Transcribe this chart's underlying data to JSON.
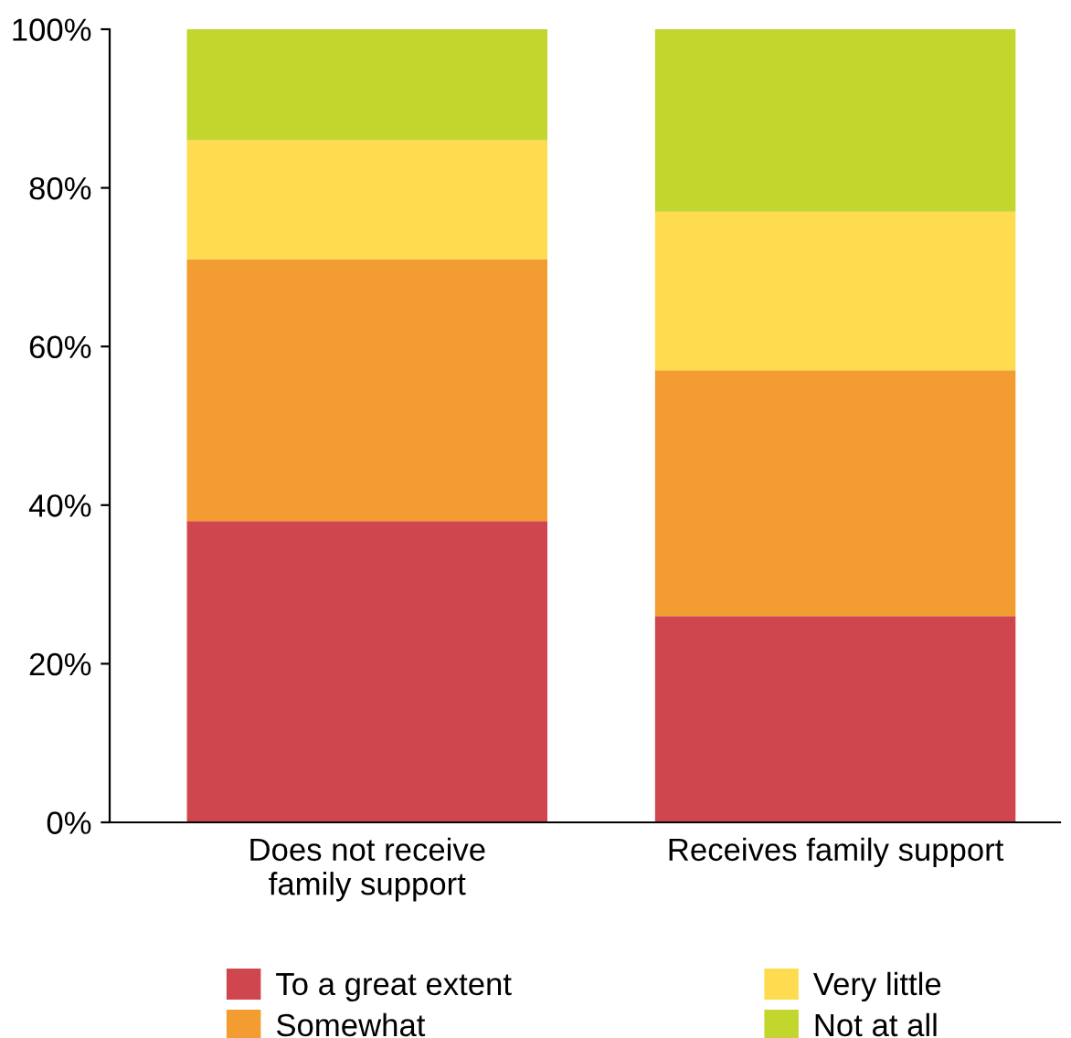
{
  "chart_data": {
    "type": "bar",
    "stacked": true,
    "categories": [
      "Does not receive\nfamily support",
      "Receives family support"
    ],
    "series": [
      {
        "name": "To a great extent",
        "color": "#d0464f",
        "values": [
          38,
          26
        ]
      },
      {
        "name": "Somewhat",
        "color": "#f39c31",
        "values": [
          33,
          31
        ]
      },
      {
        "name": "Very little",
        "color": "#fedb4f",
        "values": [
          15,
          20
        ]
      },
      {
        "name": "Not at all",
        "color": "#c2d62e",
        "values": [
          14,
          23
        ]
      }
    ],
    "ylim": [
      0,
      100
    ],
    "yticks": [
      {
        "value": 0,
        "label": "0%"
      },
      {
        "value": 20,
        "label": "20%"
      },
      {
        "value": 40,
        "label": "40%"
      },
      {
        "value": 60,
        "label": "60%"
      },
      {
        "value": 80,
        "label": "80%"
      },
      {
        "value": 100,
        "label": "100%"
      }
    ],
    "grid": false,
    "legend": "bottom"
  }
}
